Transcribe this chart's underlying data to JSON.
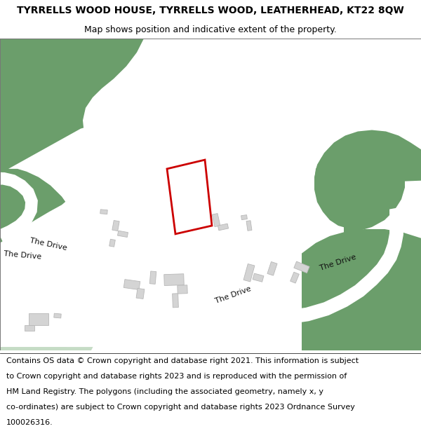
{
  "title_line1": "TYRRELLS WOOD HOUSE, TYRRELLS WOOD, LEATHERHEAD, KT22 8QW",
  "title_line2": "Map shows position and indicative extent of the property.",
  "footer_lines": [
    "Contains OS data © Crown copyright and database right 2021. This information is subject",
    "to Crown copyright and database rights 2023 and is reproduced with the permission of",
    "HM Land Registry. The polygons (including the associated geometry, namely x, y",
    "co-ordinates) are subject to Crown copyright and database rights 2023 Ordnance Survey",
    "100026316."
  ],
  "green": "#6b9e6b",
  "light_green": "#c5dcc5",
  "white": "#ffffff",
  "bld_fill": "#d4d4d4",
  "bld_edge": "#b8b8b8",
  "red": "#cc0000",
  "title_fs": 10,
  "sub_fs": 9,
  "footer_fs": 8,
  "road_fs": 8
}
